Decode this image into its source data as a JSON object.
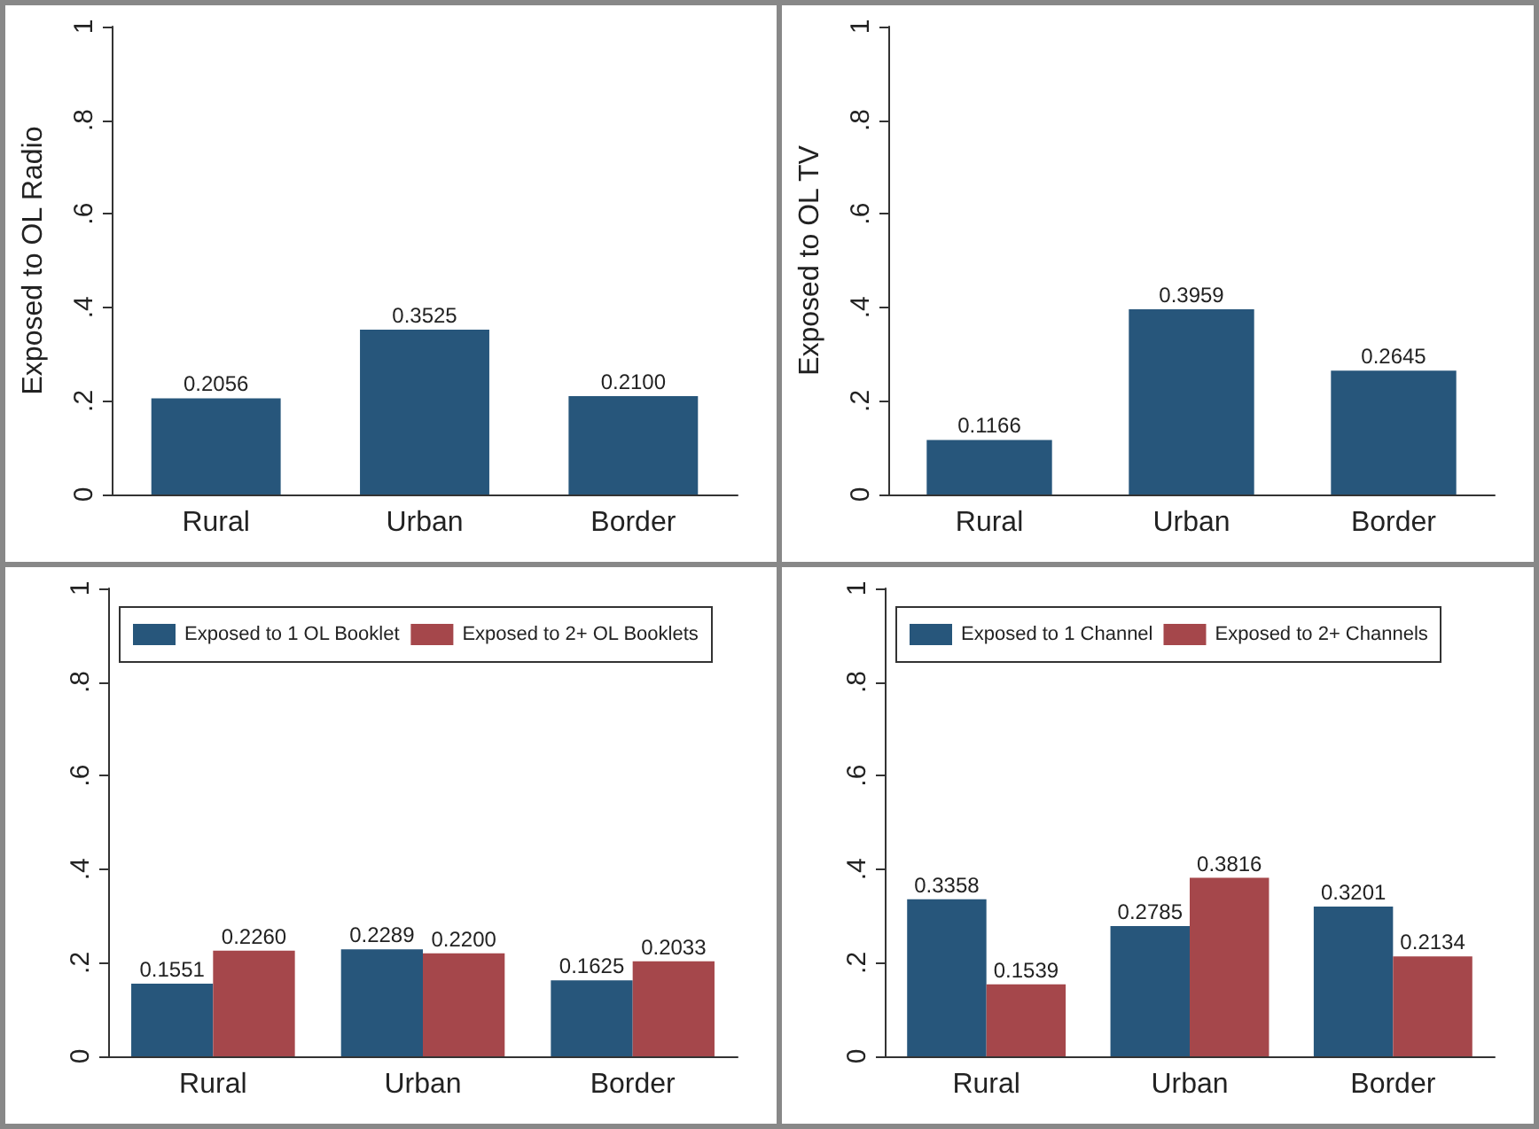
{
  "chart_data": [
    {
      "type": "bar",
      "ylabel": "Exposed to OL Radio",
      "categories": [
        "Rural",
        "Urban",
        "Border"
      ],
      "ylim": [
        0,
        1
      ],
      "yticks": [
        {
          "value": 0,
          "label": "0"
        },
        {
          "value": 0.2,
          "label": ".2"
        },
        {
          "value": 0.4,
          "label": ".4"
        },
        {
          "value": 0.6,
          "label": ".6"
        },
        {
          "value": 0.8,
          "label": ".8"
        },
        {
          "value": 1,
          "label": "1"
        }
      ],
      "grid": false,
      "legend": false,
      "series": [
        {
          "color": "#27567b",
          "values": [
            0.2056,
            0.3525,
            0.21
          ],
          "value_labels": [
            "0.2056",
            "0.3525",
            "0.2100"
          ]
        }
      ]
    },
    {
      "type": "bar",
      "ylabel": "Exposed to OL TV",
      "categories": [
        "Rural",
        "Urban",
        "Border"
      ],
      "ylim": [
        0,
        1
      ],
      "yticks": [
        {
          "value": 0,
          "label": "0"
        },
        {
          "value": 0.2,
          "label": ".2"
        },
        {
          "value": 0.4,
          "label": ".4"
        },
        {
          "value": 0.6,
          "label": ".6"
        },
        {
          "value": 0.8,
          "label": ".8"
        },
        {
          "value": 1,
          "label": "1"
        }
      ],
      "grid": false,
      "legend": false,
      "series": [
        {
          "color": "#27567b",
          "values": [
            0.1166,
            0.3959,
            0.2645
          ],
          "value_labels": [
            "0.1166",
            "0.3959",
            "0.2645"
          ]
        }
      ]
    },
    {
      "type": "bar",
      "categories": [
        "Rural",
        "Urban",
        "Border"
      ],
      "ylim": [
        0,
        1
      ],
      "yticks": [
        {
          "value": 0,
          "label": "0"
        },
        {
          "value": 0.2,
          "label": ".2"
        },
        {
          "value": 0.4,
          "label": ".4"
        },
        {
          "value": 0.6,
          "label": ".6"
        },
        {
          "value": 0.8,
          "label": ".8"
        },
        {
          "value": 1,
          "label": "1"
        }
      ],
      "grid": false,
      "legend": "top",
      "series": [
        {
          "name": "Exposed to 1 OL Booklet",
          "color": "#27567b",
          "values": [
            0.1551,
            0.2289,
            0.1625
          ],
          "value_labels": [
            "0.1551",
            "0.2289",
            "0.1625"
          ]
        },
        {
          "name": "Exposed to 2+ OL Booklets",
          "color": "#a5474b",
          "values": [
            0.226,
            0.22,
            0.2033
          ],
          "value_labels": [
            "0.2260",
            "0.2200",
            "0.2033"
          ]
        }
      ]
    },
    {
      "type": "bar",
      "categories": [
        "Rural",
        "Urban",
        "Border"
      ],
      "ylim": [
        0,
        1
      ],
      "yticks": [
        {
          "value": 0,
          "label": "0"
        },
        {
          "value": 0.2,
          "label": ".2"
        },
        {
          "value": 0.4,
          "label": ".4"
        },
        {
          "value": 0.6,
          "label": ".6"
        },
        {
          "value": 0.8,
          "label": ".8"
        },
        {
          "value": 1,
          "label": "1"
        }
      ],
      "grid": false,
      "legend": "top",
      "series": [
        {
          "name": "Exposed to 1 Channel",
          "color": "#27567b",
          "values": [
            0.3358,
            0.2785,
            0.3201
          ],
          "value_labels": [
            "0.3358",
            "0.2785",
            "0.3201"
          ]
        },
        {
          "name": "Exposed to 2+ Channels",
          "color": "#a5474b",
          "values": [
            0.1539,
            0.3816,
            0.2134
          ],
          "value_labels": [
            "0.1539",
            "0.3816",
            "0.2134"
          ]
        }
      ]
    }
  ]
}
